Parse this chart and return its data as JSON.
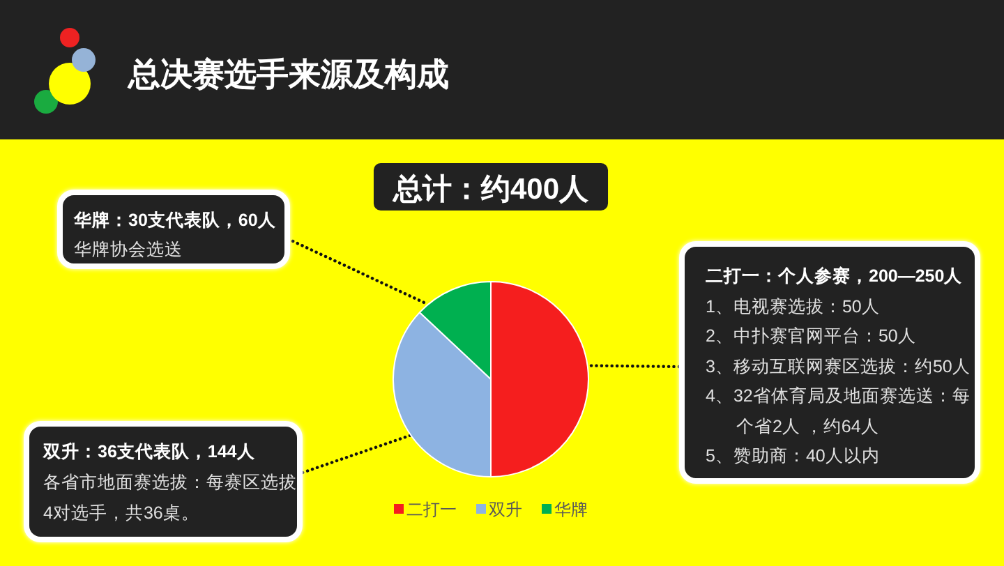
{
  "chart_data": {
    "type": "pie",
    "title": "总决赛选手来源及构成",
    "subtitle": "总计：约400人",
    "categories": [
      "二打一",
      "双升",
      "华牌"
    ],
    "values": [
      50,
      37,
      13
    ],
    "colors": [
      "#f51e1e",
      "#8db3e2",
      "#00b050"
    ],
    "legend": "bottom",
    "annotations": [
      "华牌：30支代表队，60人",
      "华牌协会选送",
      "二打一：个人参赛，200—250人",
      "1、电视赛选拔：50人",
      "2、中扑赛官网平台：50人",
      "3、移动互联网赛区选拔：约50人",
      "4、32省体育局及地面赛选送：每个省2人 ，约64人",
      "5、赞助商：40人以内",
      "双升：36支代表队，144人",
      "各省市地面赛选拔：每赛区选拔4对选手，共36桌。"
    ]
  }
}
